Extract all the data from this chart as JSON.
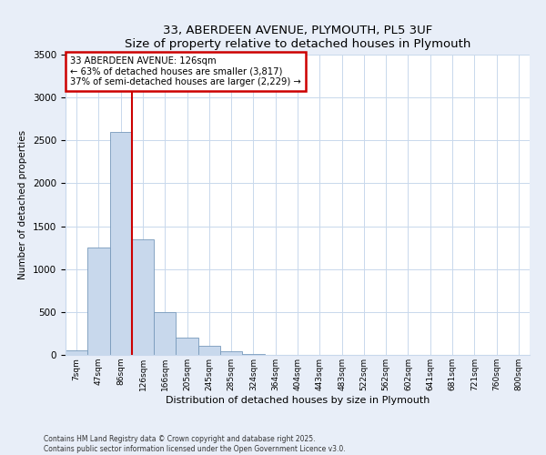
{
  "title": "33, ABERDEEN AVENUE, PLYMOUTH, PL5 3UF",
  "subtitle": "Size of property relative to detached houses in Plymouth",
  "xlabel": "Distribution of detached houses by size in Plymouth",
  "ylabel": "Number of detached properties",
  "bar_labels": [
    "7sqm",
    "47sqm",
    "86sqm",
    "126sqm",
    "166sqm",
    "205sqm",
    "245sqm",
    "285sqm",
    "324sqm",
    "364sqm",
    "404sqm",
    "443sqm",
    "483sqm",
    "522sqm",
    "562sqm",
    "602sqm",
    "641sqm",
    "681sqm",
    "721sqm",
    "760sqm",
    "800sqm"
  ],
  "bar_values": [
    50,
    1250,
    2600,
    1350,
    500,
    200,
    110,
    45,
    15,
    5,
    2,
    0,
    0,
    0,
    0,
    0,
    0,
    0,
    0,
    0,
    0
  ],
  "bar_color": "#c8d8ec",
  "bar_edge_color": "#7799bb",
  "vline_color": "#cc0000",
  "annotation_line1": "33 ABERDEEN AVENUE: 126sqm",
  "annotation_line2": "← 63% of detached houses are smaller (3,817)",
  "annotation_line3": "37% of semi-detached houses are larger (2,229) →",
  "annotation_box_color": "#cc0000",
  "ylim": [
    0,
    3500
  ],
  "yticks": [
    0,
    500,
    1000,
    1500,
    2000,
    2500,
    3000,
    3500
  ],
  "footnote1": "Contains HM Land Registry data © Crown copyright and database right 2025.",
  "footnote2": "Contains public sector information licensed under the Open Government Licence v3.0.",
  "background_color": "#e8eef8",
  "plot_bg_color": "#ffffff",
  "grid_color": "#c8d8ec"
}
